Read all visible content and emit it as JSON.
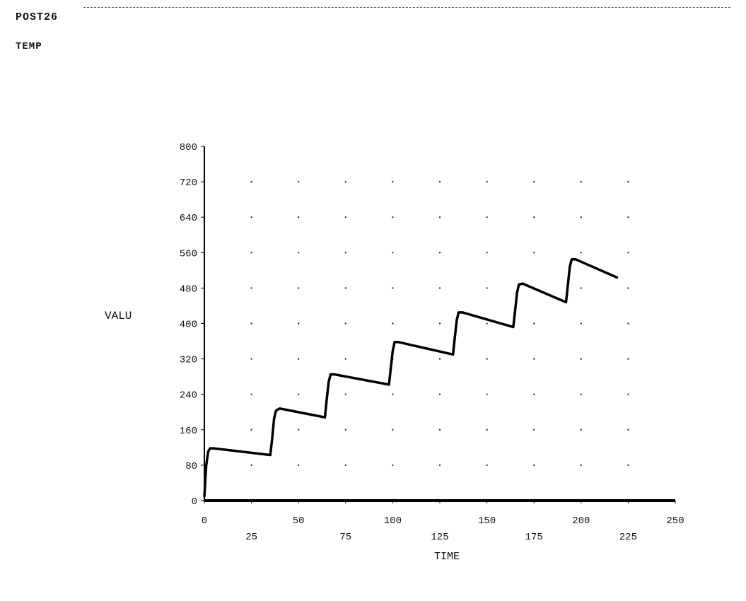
{
  "header": {
    "title": "POST26",
    "subtitle": "TEMP"
  },
  "chart_data": {
    "type": "line",
    "title": "",
    "xlabel": "TIME",
    "ylabel": "VALU",
    "xlim": [
      0,
      250
    ],
    "ylim": [
      0,
      800
    ],
    "xticks": [
      0,
      25,
      50,
      75,
      100,
      125,
      150,
      175,
      200,
      225,
      250
    ],
    "xtick_labels": [
      "0",
      "25",
      "50",
      "75",
      "100",
      "125",
      "150",
      "175",
      "200",
      "225",
      "250"
    ],
    "yticks": [
      0,
      80,
      160,
      240,
      320,
      400,
      480,
      560,
      640,
      720,
      800
    ],
    "ytick_labels": [
      "0",
      "80",
      "160",
      "240",
      "320",
      "400",
      "480",
      "560",
      "640",
      "720",
      "800"
    ],
    "grid": "dotted",
    "color": "#000000",
    "series": [
      {
        "name": "",
        "x": [
          0,
          1,
          2,
          3,
          5,
          35,
          36,
          37,
          38,
          40,
          64,
          65,
          66,
          67,
          69,
          98,
          99,
          100,
          101,
          103,
          132,
          133,
          134,
          135,
          137,
          164,
          165,
          166,
          167,
          169,
          192,
          193,
          194,
          195,
          197,
          219
        ],
        "y": [
          10,
          80,
          110,
          118,
          118,
          103,
          140,
          185,
          203,
          208,
          188,
          230,
          268,
          285,
          285,
          262,
          300,
          338,
          358,
          358,
          330,
          370,
          408,
          425,
          425,
          392,
          430,
          470,
          488,
          490,
          448,
          488,
          528,
          545,
          545,
          504
        ]
      }
    ]
  }
}
